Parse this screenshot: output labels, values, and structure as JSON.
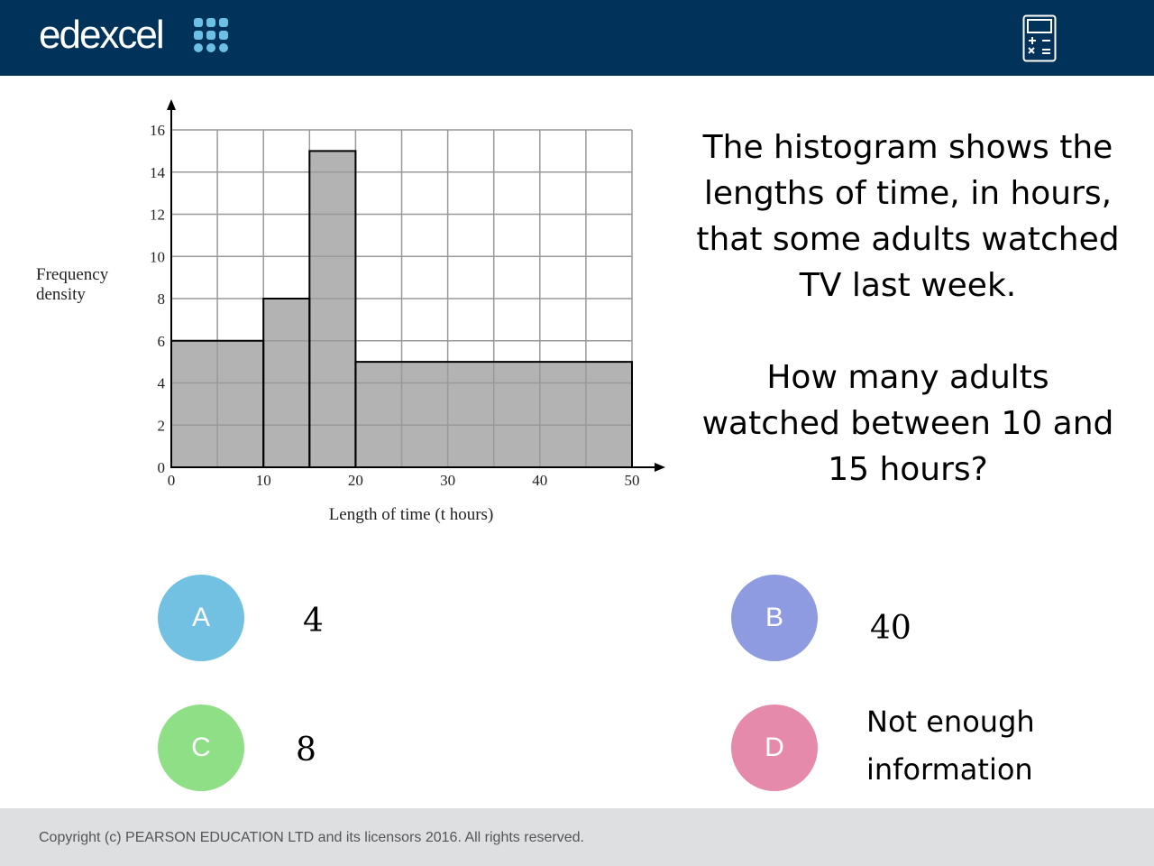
{
  "header": {
    "logo_text": "edexcel",
    "logo_icon": "dot-grid-icon",
    "tool_icon": "calculator-icon",
    "background": "#00325a"
  },
  "question": {
    "line1": "The histogram shows the lengths of time, in hours, that some adults watched TV last week.",
    "line2": "How many adults watched between 10 and 15 hours?"
  },
  "options": [
    {
      "letter": "A",
      "answer": "4",
      "color": "#72c1e3"
    },
    {
      "letter": "B",
      "answer": "40",
      "color": "#8e9be0"
    },
    {
      "letter": "C",
      "answer": "8",
      "color": "#8edf86"
    },
    {
      "letter": "D",
      "answer_line1": "Not enough",
      "answer_line2": "information",
      "color": "#e58aaa"
    }
  ],
  "footer": {
    "copyright": "Copyright (c) PEARSON EDUCATION LTD and its licensors 2016. All rights reserved."
  },
  "chart_data": {
    "type": "bar",
    "subtype": "histogram",
    "xlabel": "Length of time (t hours)",
    "ylabel_line1": "Frequency",
    "ylabel_line2": "density",
    "bins": [
      {
        "from": 0,
        "to": 10,
        "density": 6
      },
      {
        "from": 10,
        "to": 15,
        "density": 8
      },
      {
        "from": 15,
        "to": 20,
        "density": 15
      },
      {
        "from": 20,
        "to": 50,
        "density": 5
      }
    ],
    "xlim": [
      0,
      50
    ],
    "ylim": [
      0,
      16
    ],
    "xticks": [
      "0",
      "10",
      "20",
      "30",
      "40",
      "50"
    ],
    "yticks": [
      "0",
      "2",
      "4",
      "6",
      "8",
      "10",
      "12",
      "14",
      "16"
    ],
    "grid": true,
    "grid_x_step": 5,
    "grid_y_step": 2,
    "bar_color": "#b3b3b3"
  }
}
